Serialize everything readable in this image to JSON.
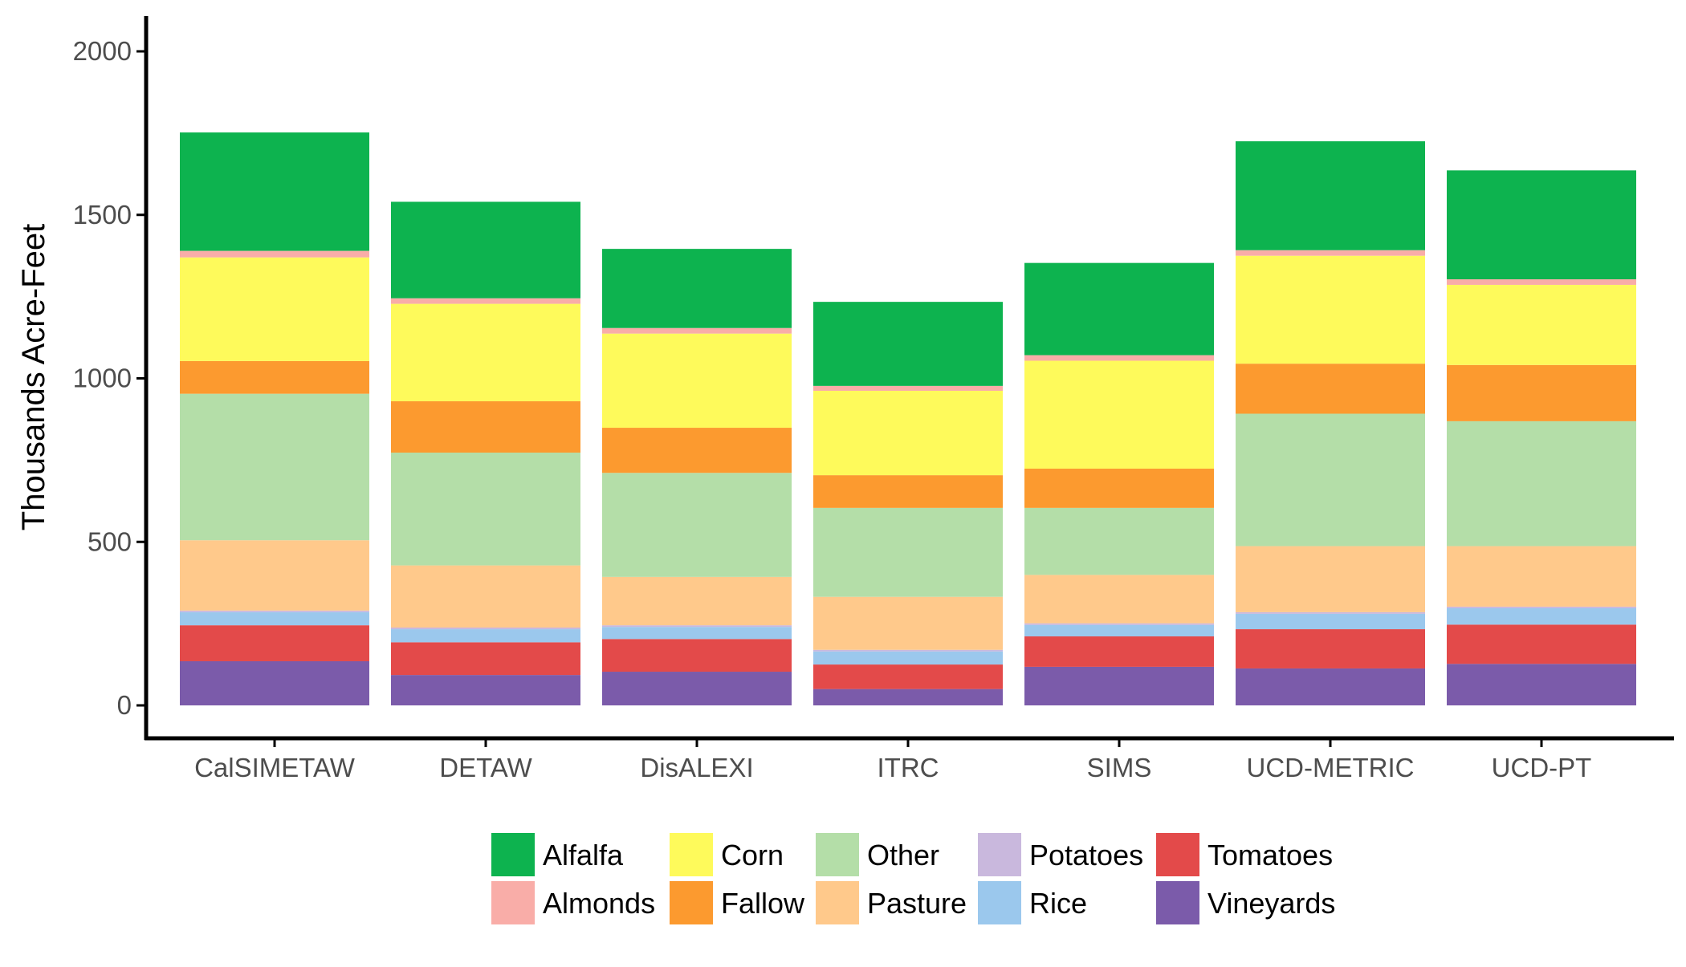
{
  "chart_data": {
    "type": "bar",
    "stacked": true,
    "title": "",
    "xlabel": "",
    "ylabel": "Thousands Acre-Feet",
    "ylim": [
      0,
      2000
    ],
    "yticks": [
      "0",
      "500",
      "1000",
      "1500",
      "2000"
    ],
    "grid": false,
    "legend_position": "bottom",
    "categories": [
      "CalSIMETAW",
      "DETAW",
      "DisALEXI",
      "ITRC",
      "SIMS",
      "UCD-METRIC",
      "UCD-PT"
    ],
    "series": [
      {
        "name": "Vineyards",
        "color": "#7B5BAA",
        "values": [
          135,
          93,
          103,
          50,
          118,
          113,
          127
        ]
      },
      {
        "name": "Tomatoes",
        "color": "#E34A4A",
        "values": [
          110,
          100,
          100,
          75,
          93,
          120,
          120
        ]
      },
      {
        "name": "Rice",
        "color": "#9BC8ED",
        "values": [
          40,
          40,
          37,
          40,
          35,
          47,
          50
        ]
      },
      {
        "name": "Potatoes",
        "color": "#C9B8DD",
        "values": [
          5,
          5,
          5,
          5,
          5,
          5,
          5
        ]
      },
      {
        "name": "Pasture",
        "color": "#FFC98B",
        "values": [
          215,
          190,
          148,
          162,
          148,
          202,
          185
        ]
      },
      {
        "name": "Other",
        "color": "#B4DEA8",
        "values": [
          448,
          345,
          318,
          272,
          205,
          405,
          382
        ]
      },
      {
        "name": "Fallow",
        "color": "#FC9A2F",
        "values": [
          100,
          157,
          138,
          100,
          120,
          153,
          172
        ]
      },
      {
        "name": "Corn",
        "color": "#FEFA5B",
        "values": [
          317,
          298,
          288,
          258,
          330,
          330,
          245
        ]
      },
      {
        "name": "Almonds",
        "color": "#F9ADA8",
        "values": [
          20,
          17,
          17,
          15,
          17,
          17,
          17
        ]
      },
      {
        "name": "Alfalfa",
        "color": "#0DB34F",
        "values": [
          362,
          295,
          242,
          257,
          282,
          333,
          333
        ]
      }
    ],
    "legend_order": [
      "Alfalfa",
      "Almonds",
      "Corn",
      "Fallow",
      "Other",
      "Pasture",
      "Potatoes",
      "Rice",
      "Tomatoes",
      "Vineyards"
    ]
  }
}
